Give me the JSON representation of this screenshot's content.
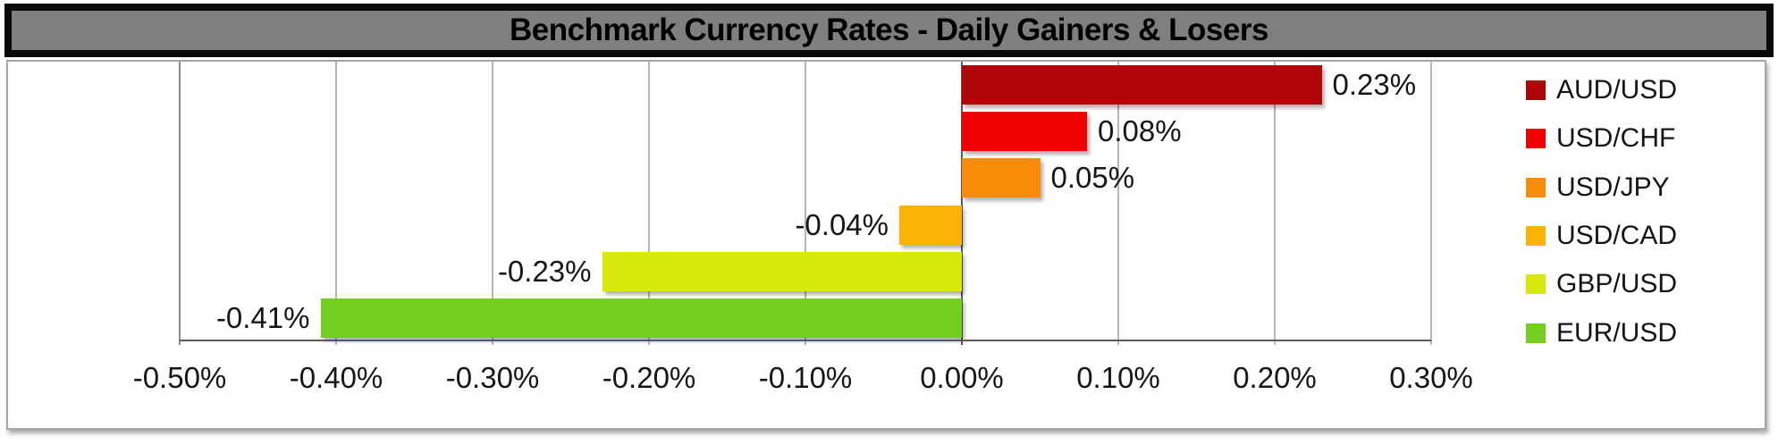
{
  "title": "Benchmark Currency Rates - Daily Gainers & Losers",
  "colors": {
    "title_bg": "#7f7f7f",
    "title_border": "#0a0a0a",
    "frame_border": "#a6a6a6",
    "gridline": "#b5b5b5",
    "axis_line": "#5a5a5a",
    "text": "#161616"
  },
  "chart_data": {
    "type": "bar",
    "orientation": "horizontal",
    "title": "Benchmark Currency Rates - Daily Gainers & Losers",
    "categories": [
      "AUD/USD",
      "USD/CHF",
      "USD/JPY",
      "USD/CAD",
      "GBP/USD",
      "EUR/USD"
    ],
    "values": [
      0.23,
      0.08,
      0.05,
      -0.04,
      -0.23,
      -0.41
    ],
    "data_labels": [
      "0.23%",
      "0.08%",
      "0.05%",
      "-0.04%",
      "-0.23%",
      "-0.41%"
    ],
    "bar_colors": [
      "#b00506",
      "#ee0202",
      "#f98b07",
      "#fab306",
      "#d7e90b",
      "#74cf23"
    ],
    "xlabel": "",
    "ylabel": "",
    "xlim": [
      -0.5,
      0.3
    ],
    "x_tick_values": [
      -0.5,
      -0.4,
      -0.3,
      -0.2,
      -0.1,
      0.0,
      0.1,
      0.2,
      0.3
    ],
    "x_tick_labels": [
      "-0.50%",
      "-0.40%",
      "-0.30%",
      "-0.20%",
      "-0.10%",
      "0.00%",
      "0.10%",
      "0.20%",
      "0.30%"
    ],
    "grid": true,
    "legend_position": "right",
    "legend": [
      {
        "label": "AUD/USD",
        "color": "#b00506"
      },
      {
        "label": "USD/CHF",
        "color": "#ee0202"
      },
      {
        "label": "USD/JPY",
        "color": "#f98b07"
      },
      {
        "label": "USD/CAD",
        "color": "#fab306"
      },
      {
        "label": "GBP/USD",
        "color": "#d7e90b"
      },
      {
        "label": "EUR/USD",
        "color": "#74cf23"
      }
    ]
  }
}
